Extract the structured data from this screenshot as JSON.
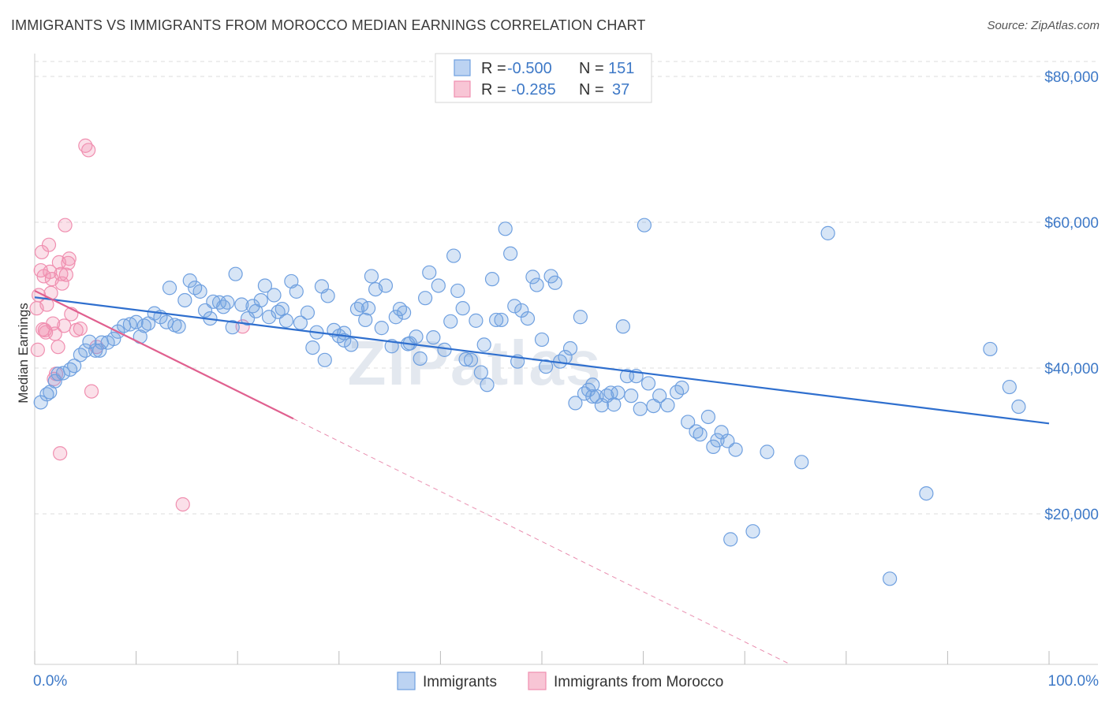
{
  "header": {
    "title": "IMMIGRANTS VS IMMIGRANTS FROM MOROCCO MEDIAN EARNINGS CORRELATION CHART",
    "source": "Source: ZipAtlas.com"
  },
  "watermark": "ZIPatlas",
  "colors": {
    "blue": "#6fa0e0",
    "blue_line": "#2f6fce",
    "pink": "#f08fb0",
    "pink_line": "#e0608f",
    "grid": "#dddddd",
    "tick_text": "#3e79c7"
  },
  "chart_data": {
    "type": "scatter",
    "title": "IMMIGRANTS VS IMMIGRANTS FROM MOROCCO MEDIAN EARNINGS CORRELATION CHART",
    "xlabel": "",
    "ylabel": "Median Earnings",
    "xlim": [
      0,
      100
    ],
    "ylim": [
      2000,
      82000
    ],
    "x_tick_labels": [
      "0.0%",
      "100.0%"
    ],
    "y_ticks": [
      20000,
      40000,
      60000,
      80000
    ],
    "y_tick_labels": [
      "$20,000",
      "$40,000",
      "$60,000",
      "$80,000"
    ],
    "grid": true,
    "legend_placement": "top-center",
    "legend": [
      {
        "r_label": "R =",
        "r": "-0.500",
        "n_label": "N =",
        "n": "151"
      },
      {
        "r_label": "R =",
        "r": "-0.285",
        "n_label": "N =",
        "n": "37"
      }
    ],
    "series": [
      {
        "name": "Immigrants",
        "color": "#6fa0e0",
        "trend": {
          "x": [
            0,
            100
          ],
          "y": [
            49700,
            32400
          ],
          "dashed_from": null
        },
        "points": [
          [
            0.6,
            35300
          ],
          [
            1.2,
            36400
          ],
          [
            1.5,
            36700
          ],
          [
            2.0,
            38200
          ],
          [
            2.3,
            39200
          ],
          [
            2.8,
            39300
          ],
          [
            3.5,
            39800
          ],
          [
            3.9,
            40300
          ],
          [
            4.5,
            41800
          ],
          [
            5.0,
            42400
          ],
          [
            5.4,
            43600
          ],
          [
            6.0,
            42400
          ],
          [
            6.4,
            42400
          ],
          [
            6.6,
            43500
          ],
          [
            7.2,
            43500
          ],
          [
            7.8,
            44000
          ],
          [
            8.2,
            45000
          ],
          [
            8.8,
            45800
          ],
          [
            9.4,
            46000
          ],
          [
            10.0,
            46300
          ],
          [
            10.4,
            44300
          ],
          [
            10.8,
            45800
          ],
          [
            11.2,
            46100
          ],
          [
            11.8,
            47500
          ],
          [
            12.4,
            47000
          ],
          [
            13.0,
            46300
          ],
          [
            13.3,
            51000
          ],
          [
            13.8,
            45900
          ],
          [
            14.2,
            45700
          ],
          [
            14.8,
            49300
          ],
          [
            15.3,
            52000
          ],
          [
            15.8,
            51000
          ],
          [
            16.3,
            50500
          ],
          [
            16.8,
            47900
          ],
          [
            17.3,
            46800
          ],
          [
            17.6,
            49100
          ],
          [
            18.2,
            49000
          ],
          [
            18.6,
            48400
          ],
          [
            19.0,
            49000
          ],
          [
            19.5,
            45600
          ],
          [
            19.8,
            52900
          ],
          [
            20.4,
            48700
          ],
          [
            21.0,
            46800
          ],
          [
            21.5,
            48500
          ],
          [
            21.8,
            47800
          ],
          [
            22.3,
            49300
          ],
          [
            22.7,
            51300
          ],
          [
            23.1,
            47000
          ],
          [
            23.6,
            50000
          ],
          [
            24.0,
            47700
          ],
          [
            24.4,
            48100
          ],
          [
            24.8,
            46500
          ],
          [
            25.3,
            51900
          ],
          [
            25.8,
            50500
          ],
          [
            26.2,
            46200
          ],
          [
            26.9,
            47600
          ],
          [
            27.4,
            42800
          ],
          [
            27.8,
            44900
          ],
          [
            28.3,
            51200
          ],
          [
            28.6,
            41100
          ],
          [
            28.9,
            49900
          ],
          [
            29.5,
            45200
          ],
          [
            30.0,
            44400
          ],
          [
            30.5,
            44800
          ],
          [
            31.2,
            43200
          ],
          [
            31.8,
            48100
          ],
          [
            32.2,
            48600
          ],
          [
            32.6,
            46600
          ],
          [
            32.9,
            48200
          ],
          [
            33.2,
            52600
          ],
          [
            33.6,
            50800
          ],
          [
            34.2,
            45500
          ],
          [
            34.6,
            51300
          ],
          [
            35.2,
            43000
          ],
          [
            35.6,
            47000
          ],
          [
            36.0,
            48100
          ],
          [
            36.4,
            47600
          ],
          [
            37.0,
            43400
          ],
          [
            37.6,
            44300
          ],
          [
            38.0,
            41300
          ],
          [
            38.5,
            49600
          ],
          [
            38.9,
            53100
          ],
          [
            39.3,
            44200
          ],
          [
            39.8,
            51300
          ],
          [
            40.4,
            42500
          ],
          [
            41.0,
            46400
          ],
          [
            41.3,
            55400
          ],
          [
            41.7,
            50600
          ],
          [
            42.2,
            48200
          ],
          [
            42.5,
            41200
          ],
          [
            43.0,
            41100
          ],
          [
            43.5,
            46500
          ],
          [
            44.0,
            39400
          ],
          [
            44.6,
            37700
          ],
          [
            45.1,
            52200
          ],
          [
            45.5,
            46600
          ],
          [
            46.0,
            46600
          ],
          [
            46.4,
            59100
          ],
          [
            46.9,
            55700
          ],
          [
            47.3,
            48500
          ],
          [
            47.6,
            40900
          ],
          [
            48.0,
            47900
          ],
          [
            48.6,
            46800
          ],
          [
            49.1,
            52500
          ],
          [
            49.5,
            51400
          ],
          [
            50.0,
            43900
          ],
          [
            50.4,
            40200
          ],
          [
            50.9,
            52600
          ],
          [
            51.3,
            51700
          ],
          [
            51.8,
            40900
          ],
          [
            52.3,
            41500
          ],
          [
            52.8,
            42700
          ],
          [
            53.3,
            35200
          ],
          [
            53.8,
            47000
          ],
          [
            54.2,
            36500
          ],
          [
            54.6,
            37000
          ],
          [
            55.0,
            37700
          ],
          [
            55.4,
            36100
          ],
          [
            55.9,
            34900
          ],
          [
            56.4,
            36200
          ],
          [
            56.8,
            36600
          ],
          [
            57.1,
            35000
          ],
          [
            57.5,
            36600
          ],
          [
            58.0,
            45700
          ],
          [
            58.4,
            38900
          ],
          [
            58.8,
            36200
          ],
          [
            59.3,
            38900
          ],
          [
            59.7,
            34400
          ],
          [
            60.1,
            59600
          ],
          [
            60.5,
            37900
          ],
          [
            61.0,
            34800
          ],
          [
            61.6,
            36200
          ],
          [
            62.4,
            34900
          ],
          [
            63.3,
            36700
          ],
          [
            63.8,
            37300
          ],
          [
            64.4,
            32600
          ],
          [
            65.2,
            31300
          ],
          [
            65.6,
            30900
          ],
          [
            66.4,
            33300
          ],
          [
            66.9,
            29200
          ],
          [
            67.3,
            30100
          ],
          [
            67.7,
            31200
          ],
          [
            68.3,
            30000
          ],
          [
            68.6,
            16500
          ],
          [
            69.1,
            28800
          ],
          [
            70.8,
            17600
          ],
          [
            72.2,
            28500
          ],
          [
            75.6,
            27100
          ],
          [
            78.2,
            58500
          ],
          [
            84.3,
            11100
          ],
          [
            87.9,
            22800
          ],
          [
            94.2,
            42600
          ],
          [
            96.1,
            37400
          ],
          [
            97.0,
            34700
          ],
          [
            55.0,
            36100
          ],
          [
            44.3,
            43200
          ],
          [
            36.8,
            43300
          ],
          [
            30.5,
            43800
          ]
        ]
      },
      {
        "name": "Immigrants from Morocco",
        "color": "#f08fb0",
        "trend": {
          "x": [
            0,
            100
          ],
          "y": [
            50600,
            -18200
          ],
          "dashed_from": 25.5
        },
        "points": [
          [
            0.2,
            48200
          ],
          [
            0.4,
            50000
          ],
          [
            0.6,
            53400
          ],
          [
            0.7,
            55900
          ],
          [
            0.9,
            52600
          ],
          [
            1.0,
            45200
          ],
          [
            1.1,
            44900
          ],
          [
            1.2,
            48700
          ],
          [
            1.4,
            56900
          ],
          [
            1.5,
            53200
          ],
          [
            1.6,
            50300
          ],
          [
            1.7,
            52200
          ],
          [
            1.8,
            46100
          ],
          [
            2.0,
            44700
          ],
          [
            2.1,
            39200
          ],
          [
            2.3,
            42900
          ],
          [
            2.4,
            54500
          ],
          [
            2.6,
            52900
          ],
          [
            2.7,
            51600
          ],
          [
            2.9,
            45800
          ],
          [
            3.0,
            59600
          ],
          [
            3.1,
            52800
          ],
          [
            3.3,
            54400
          ],
          [
            3.4,
            55000
          ],
          [
            3.6,
            47400
          ],
          [
            4.1,
            45200
          ],
          [
            4.5,
            45400
          ],
          [
            5.0,
            70500
          ],
          [
            5.3,
            69900
          ],
          [
            5.6,
            36800
          ],
          [
            6.1,
            42900
          ],
          [
            1.9,
            38500
          ],
          [
            2.5,
            28300
          ],
          [
            14.6,
            21300
          ],
          [
            20.5,
            45700
          ],
          [
            0.3,
            42500
          ],
          [
            0.8,
            45300
          ]
        ]
      }
    ]
  },
  "bottom_legend": {
    "items": [
      "Immigrants",
      "Immigrants from Morocco"
    ]
  }
}
